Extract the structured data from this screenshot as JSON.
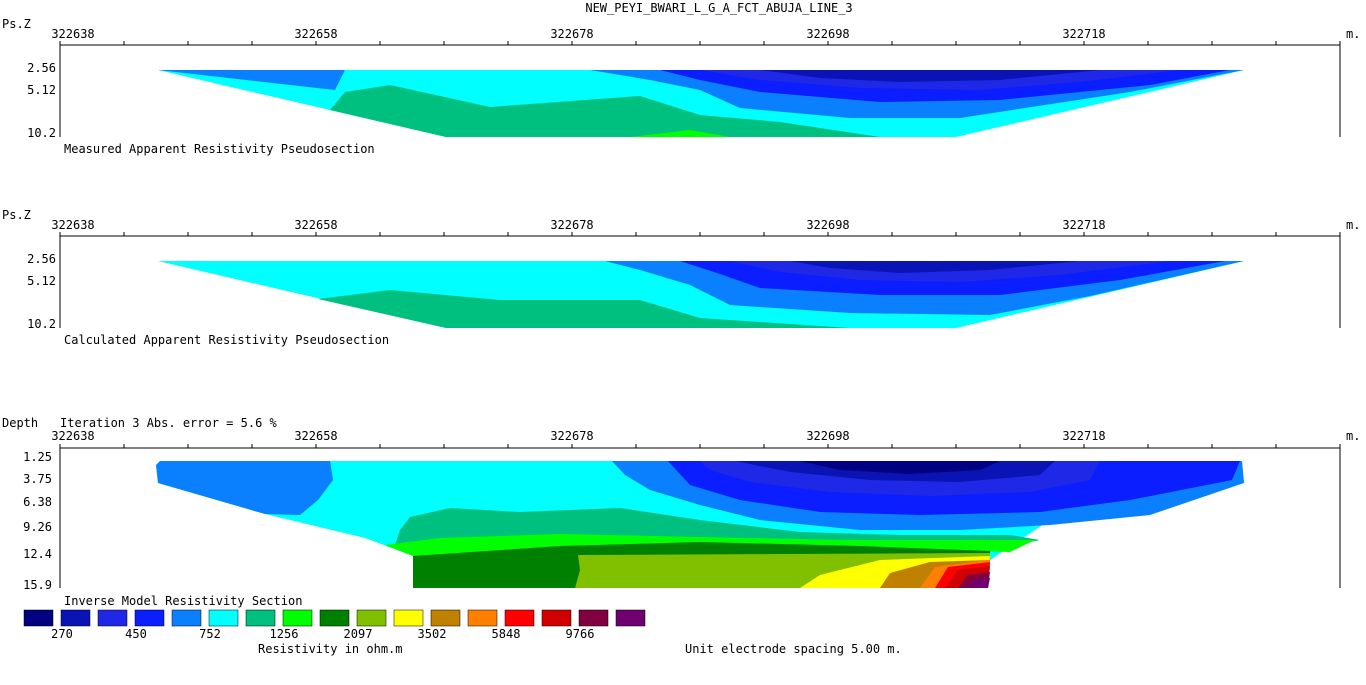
{
  "title": "NEW_PEYI_BWARI_L_G_A_FCT_ABUJA_LINE_3",
  "x_ticks": [
    "322638",
    "322658",
    "322678",
    "322698",
    "322718"
  ],
  "x_unit": "m.",
  "sections": [
    {
      "id": "measured",
      "ylabel": "Ps.Z",
      "y_ticks": [
        "2.56",
        "5.12",
        "10.2"
      ],
      "caption": "Measured Apparent Resistivity Pseudosection"
    },
    {
      "id": "calculated",
      "ylabel": "Ps.Z",
      "y_ticks": [
        "2.56",
        "5.12",
        "10.2"
      ],
      "caption": "Calculated Apparent Resistivity Pseudosection"
    },
    {
      "id": "inverse",
      "ylabel": "Depth",
      "iteration_text": "Iteration 3 Abs. error = 5.6 %",
      "y_ticks": [
        "1.25",
        "3.75",
        "6.38",
        "9.26",
        "12.4",
        "15.9"
      ],
      "caption": "Inverse Model Resistivity Section"
    }
  ],
  "legend": {
    "colors": [
      "#000080",
      "#0a14b4",
      "#1e28e6",
      "#0a1eff",
      "#0a80ff",
      "#00ffff",
      "#00c080",
      "#00ff00",
      "#008000",
      "#80c000",
      "#ffff00",
      "#c08000",
      "#ff8000",
      "#ff0000",
      "#d00000",
      "#800040",
      "#700070"
    ],
    "labels": [
      "270",
      "450",
      "752",
      "1256",
      "2097",
      "3502",
      "5848",
      "9766"
    ],
    "unit_label": "Resistivity in ohm.m"
  },
  "spacing_note": "Unit electrode spacing 5.00 m.",
  "chart_data": [
    {
      "type": "heatmap",
      "title": "Measured Apparent Resistivity Pseudosection",
      "xlabel": "",
      "ylabel": "Ps.Z",
      "x_ticks": [
        322638,
        322658,
        322678,
        322698,
        322718
      ],
      "y_ticks": [
        2.56,
        5.12,
        10.2
      ],
      "value_range_ohm_m": [
        270,
        9766
      ]
    },
    {
      "type": "heatmap",
      "title": "Calculated Apparent Resistivity Pseudosection",
      "xlabel": "",
      "ylabel": "Ps.Z",
      "x_ticks": [
        322638,
        322658,
        322678,
        322698,
        322718
      ],
      "y_ticks": [
        2.56,
        5.12,
        10.2
      ],
      "value_range_ohm_m": [
        270,
        9766
      ]
    },
    {
      "type": "heatmap",
      "title": "Inverse Model Resistivity Section",
      "xlabel": "",
      "ylabel": "Depth",
      "x_ticks": [
        322638,
        322658,
        322678,
        322698,
        322718
      ],
      "y_ticks": [
        1.25,
        3.75,
        6.38,
        9.26,
        12.4,
        15.9
      ],
      "value_range_ohm_m": [
        270,
        9766
      ]
    }
  ]
}
